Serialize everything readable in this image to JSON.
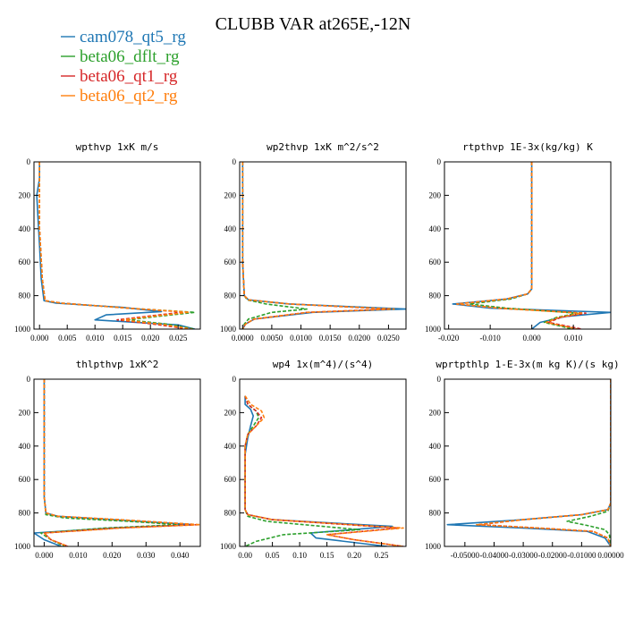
{
  "figure_title": "CLUBB VAR at265E,-12N",
  "legend": [
    {
      "label": "cam078_qt5_rg",
      "color": "#1f77b4",
      "dash": "solid"
    },
    {
      "label": "beta06_dflt_rg",
      "color": "#2ca02c",
      "dash": "dashed"
    },
    {
      "label": "beta06_qt1_rg",
      "color": "#d62728",
      "dash": "dashed"
    },
    {
      "label": "beta06_qt2_rg",
      "color": "#ff7f0e",
      "dash": "dashed"
    }
  ],
  "chart_data": [
    {
      "type": "line",
      "title": "wpthvp   1xK m/s",
      "xlim": [
        -0.001,
        0.029
      ],
      "ylim": [
        1000,
        0
      ],
      "xticks": [
        0.0,
        0.005,
        0.01,
        0.015,
        0.02,
        0.025
      ],
      "xticklabels": [
        "0.000",
        "0.005",
        "0.010",
        "0.015",
        "0.020",
        "0.025"
      ],
      "yticks": [
        0,
        200,
        400,
        600,
        800,
        1000
      ],
      "series": [
        {
          "name": "cam078_qt5_rg",
          "x": [
            0.0,
            0.0,
            -0.0005,
            0.0,
            0.0003,
            0.0008,
            0.003,
            0.015,
            0.022,
            0.012,
            0.01,
            0.025,
            0.028
          ],
          "y": [
            0,
            100,
            200,
            500,
            700,
            830,
            845,
            870,
            895,
            915,
            945,
            975,
            1000
          ]
        },
        {
          "name": "beta06_dflt_rg",
          "x": [
            0.0,
            0.0,
            0.0,
            0.0005,
            0.001,
            0.004,
            0.016,
            0.028,
            0.021,
            0.016,
            0.023,
            0.028
          ],
          "y": [
            0,
            100,
            400,
            700,
            830,
            845,
            875,
            900,
            925,
            945,
            970,
            1000
          ]
        },
        {
          "name": "beta06_qt1_rg",
          "x": [
            0.0,
            0.0,
            0.0,
            0.0005,
            0.001,
            0.004,
            0.016,
            0.026,
            0.019,
            0.014,
            0.021,
            0.027
          ],
          "y": [
            0,
            100,
            400,
            700,
            830,
            845,
            875,
            898,
            925,
            945,
            972,
            1000
          ]
        },
        {
          "name": "beta06_qt2_rg",
          "x": [
            0.0,
            0.0,
            0.0,
            0.0005,
            0.001,
            0.004,
            0.016,
            0.027,
            0.02,
            0.015,
            0.022,
            0.0275
          ],
          "y": [
            0,
            100,
            400,
            700,
            830,
            845,
            875,
            899,
            925,
            945,
            971,
            1000
          ]
        }
      ]
    },
    {
      "type": "line",
      "title": "wp2thvp   1xK m^2/s^2",
      "xlim": [
        -0.0005,
        0.028
      ],
      "ylim": [
        1000,
        0
      ],
      "xticks": [
        0.0,
        0.005,
        0.01,
        0.015,
        0.02,
        0.025
      ],
      "xticklabels": [
        "0.0000",
        "0.0050",
        "0.0100",
        "0.0150",
        "0.0200",
        "0.0250"
      ],
      "yticks": [
        0,
        200,
        400,
        600,
        800,
        1000
      ],
      "series": [
        {
          "name": "cam078_qt5_rg",
          "x": [
            0.0,
            0.0,
            0.0,
            0.0003,
            0.001,
            0.008,
            0.028,
            0.012,
            0.002,
            0.0005,
            0.0
          ],
          "y": [
            0,
            200,
            600,
            800,
            825,
            850,
            880,
            900,
            940,
            970,
            1000
          ]
        },
        {
          "name": "beta06_dflt_rg",
          "x": [
            0.0,
            0.0,
            0.0,
            0.0003,
            0.0008,
            0.004,
            0.011,
            0.005,
            0.001,
            0.0003,
            0.0
          ],
          "y": [
            0,
            200,
            600,
            800,
            825,
            850,
            880,
            900,
            940,
            970,
            1000
          ]
        },
        {
          "name": "beta06_qt1_rg",
          "x": [
            0.0,
            0.0,
            0.0,
            0.0003,
            0.001,
            0.008,
            0.025,
            0.011,
            0.002,
            0.0005,
            0.0
          ],
          "y": [
            0,
            200,
            600,
            800,
            825,
            850,
            880,
            900,
            940,
            970,
            1000
          ]
        },
        {
          "name": "beta06_qt2_rg",
          "x": [
            0.0,
            0.0,
            0.0,
            0.0003,
            0.001,
            0.008,
            0.026,
            0.011,
            0.002,
            0.0005,
            0.0
          ],
          "y": [
            0,
            200,
            600,
            800,
            825,
            850,
            880,
            900,
            940,
            970,
            1000
          ]
        }
      ]
    },
    {
      "type": "line",
      "title": "rtpthvp   1E-3x(kg/kg) K",
      "xlim": [
        -0.021,
        0.019
      ],
      "ylim": [
        1000,
        0
      ],
      "xticks": [
        -0.02,
        -0.01,
        0.0,
        0.01
      ],
      "xticklabels": [
        "-0.020",
        "-0.010",
        "0.000",
        "0.010"
      ],
      "yticks": [
        0,
        200,
        400,
        600,
        800,
        1000
      ],
      "series": [
        {
          "name": "cam078_qt5_rg",
          "x": [
            0.0,
            0.0,
            0.0,
            -0.001,
            -0.006,
            -0.019,
            -0.01,
            0.019,
            0.008,
            0.002,
            0.0
          ],
          "y": [
            0,
            200,
            760,
            790,
            820,
            850,
            875,
            900,
            925,
            960,
            1000
          ]
        },
        {
          "name": "beta06_dflt_rg",
          "x": [
            0.0,
            0.0,
            0.0,
            -0.001,
            -0.005,
            -0.015,
            -0.006,
            0.011,
            0.006,
            0.003,
            0.01
          ],
          "y": [
            0,
            200,
            760,
            790,
            820,
            850,
            875,
            905,
            930,
            960,
            1000
          ]
        },
        {
          "name": "beta06_qt1_rg",
          "x": [
            0.0,
            0.0,
            0.0,
            -0.001,
            -0.006,
            -0.018,
            -0.008,
            0.013,
            0.007,
            0.004,
            0.012
          ],
          "y": [
            0,
            200,
            760,
            790,
            820,
            850,
            875,
            905,
            930,
            960,
            1000
          ]
        },
        {
          "name": "beta06_qt2_rg",
          "x": [
            0.0,
            0.0,
            0.0,
            -0.001,
            -0.006,
            -0.018,
            -0.008,
            0.012,
            0.0065,
            0.0035,
            0.011
          ],
          "y": [
            0,
            200,
            760,
            790,
            820,
            850,
            875,
            905,
            930,
            960,
            1000
          ]
        }
      ]
    },
    {
      "type": "line",
      "title": "thlpthvp   1xK^2",
      "xlim": [
        -0.003,
        0.046
      ],
      "ylim": [
        1000,
        0
      ],
      "xticks": [
        0.0,
        0.01,
        0.02,
        0.03,
        0.04
      ],
      "xticklabels": [
        "0.000",
        "0.010",
        "0.020",
        "0.030",
        "0.040"
      ],
      "yticks": [
        0,
        200,
        400,
        600,
        800,
        1000
      ],
      "series": [
        {
          "name": "cam078_qt5_rg",
          "x": [
            0.0,
            0.0,
            0.0,
            0.0,
            0.0005,
            0.004,
            0.02,
            0.044,
            0.02,
            -0.003,
            0.0,
            0.005
          ],
          "y": [
            0,
            200,
            400,
            700,
            800,
            820,
            840,
            870,
            890,
            920,
            960,
            1000
          ]
        },
        {
          "name": "beta06_dflt_rg",
          "x": [
            0.0,
            0.0,
            0.0,
            0.0,
            0.0005,
            0.006,
            0.025,
            0.04,
            0.018,
            -0.001,
            0.002,
            0.006
          ],
          "y": [
            0,
            200,
            400,
            700,
            810,
            830,
            850,
            870,
            890,
            920,
            960,
            1000
          ]
        },
        {
          "name": "beta06_qt1_rg",
          "x": [
            0.0,
            0.0,
            0.0,
            0.0,
            0.0005,
            0.004,
            0.022,
            0.045,
            0.022,
            0.0,
            0.002,
            0.007
          ],
          "y": [
            0,
            200,
            400,
            700,
            800,
            820,
            840,
            870,
            890,
            920,
            960,
            1000
          ]
        },
        {
          "name": "beta06_qt2_rg",
          "x": [
            0.0,
            0.0,
            0.0,
            0.0,
            0.0005,
            0.004,
            0.022,
            0.046,
            0.023,
            0.0,
            0.002,
            0.007
          ],
          "y": [
            0,
            200,
            400,
            700,
            800,
            820,
            840,
            870,
            890,
            920,
            960,
            1000
          ]
        }
      ]
    },
    {
      "type": "line",
      "title": "wp4   1x(m^4)/(s^4)",
      "xlim": [
        -0.01,
        0.295
      ],
      "ylim": [
        1000,
        0
      ],
      "xticks": [
        0.0,
        0.05,
        0.1,
        0.15,
        0.2,
        0.25
      ],
      "xticklabels": [
        "0.00",
        "0.05",
        "0.10",
        "0.15",
        "0.20",
        "0.25"
      ],
      "yticks": [
        0,
        200,
        400,
        600,
        800,
        1000
      ],
      "series": [
        {
          "name": "cam078_qt5_rg",
          "x": [
            0.0,
            0.0,
            0.01,
            0.015,
            0.01,
            0.005,
            0.0,
            0.0,
            0.005,
            0.05,
            0.27,
            0.12,
            0.13,
            0.26
          ],
          "y": [
            100,
            150,
            180,
            220,
            280,
            350,
            450,
            780,
            810,
            840,
            880,
            920,
            950,
            1000
          ]
        },
        {
          "name": "beta06_dflt_rg",
          "x": [
            0.0,
            0.005,
            0.02,
            0.025,
            0.015,
            0.005,
            0.0,
            0.0,
            0.005,
            0.04,
            0.21,
            0.07,
            0.02,
            0.0
          ],
          "y": [
            100,
            150,
            190,
            230,
            280,
            330,
            400,
            780,
            820,
            850,
            900,
            930,
            970,
            1000
          ]
        },
        {
          "name": "beta06_qt1_rg",
          "x": [
            0.0,
            0.005,
            0.02,
            0.03,
            0.02,
            0.005,
            0.0,
            0.0,
            0.005,
            0.05,
            0.28,
            0.15,
            0.2,
            0.29
          ],
          "y": [
            100,
            150,
            190,
            230,
            280,
            330,
            400,
            780,
            810,
            840,
            890,
            930,
            960,
            1000
          ]
        },
        {
          "name": "beta06_qt2_rg",
          "x": [
            0.0,
            0.01,
            0.03,
            0.035,
            0.02,
            0.005,
            0.0,
            0.0,
            0.005,
            0.05,
            0.29,
            0.15,
            0.2,
            0.29
          ],
          "y": [
            100,
            150,
            190,
            230,
            280,
            330,
            400,
            780,
            810,
            840,
            890,
            930,
            960,
            1000
          ]
        }
      ]
    },
    {
      "type": "line",
      "title": "wprtpthlp   1-E-3x(m kg K)/(s kg)",
      "xlim": [
        -0.057,
        0.0
      ],
      "ylim": [
        1000,
        0
      ],
      "xticks": [
        -0.05,
        -0.04,
        -0.03,
        -0.02,
        -0.01,
        0.0
      ],
      "xticklabels": [
        "-0.05000",
        "-0.04000",
        "-0.03000",
        "-0.02000",
        "-0.01000",
        "0.00000"
      ],
      "yticks": [
        0,
        200,
        400,
        600,
        800,
        1000
      ],
      "series": [
        {
          "name": "cam078_qt5_rg",
          "x": [
            0.0,
            0.0,
            0.0,
            -0.001,
            -0.01,
            -0.03,
            -0.056,
            -0.03,
            -0.008,
            -0.002,
            0.0
          ],
          "y": [
            0,
            200,
            740,
            780,
            810,
            840,
            870,
            890,
            910,
            950,
            1000
          ]
        },
        {
          "name": "beta06_dflt_rg",
          "x": [
            0.0,
            0.0,
            0.0,
            -0.001,
            -0.007,
            -0.015,
            -0.008,
            -0.002,
            -0.0005,
            0.0
          ],
          "y": [
            0,
            200,
            740,
            790,
            820,
            850,
            875,
            900,
            930,
            1000
          ]
        },
        {
          "name": "beta06_qt1_rg",
          "x": [
            0.0,
            0.0,
            0.0,
            -0.001,
            -0.01,
            -0.03,
            -0.045,
            -0.025,
            -0.006,
            -0.001,
            0.0
          ],
          "y": [
            0,
            200,
            740,
            780,
            810,
            840,
            870,
            890,
            910,
            950,
            1000
          ]
        },
        {
          "name": "beta06_qt2_rg",
          "x": [
            0.0,
            0.0,
            0.0,
            -0.001,
            -0.01,
            -0.03,
            -0.046,
            -0.025,
            -0.006,
            -0.001,
            0.0
          ],
          "y": [
            0,
            200,
            740,
            780,
            810,
            840,
            870,
            890,
            910,
            950,
            1000
          ]
        }
      ]
    }
  ]
}
